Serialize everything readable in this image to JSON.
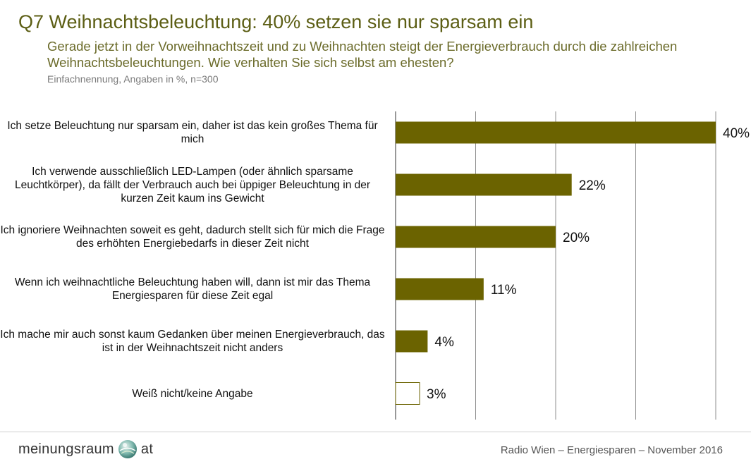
{
  "header": {
    "title": "Q7 Weihnachtsbeleuchtung: 40% setzen sie nur sparsam ein",
    "question": "Gerade jetzt in der Vorweihnachtszeit und zu Weihnachten steigt der Energieverbrauch durch die zahlreichen Weihnachtsbeleuchtungen. Wie verhalten Sie sich selbst am ehesten?",
    "note": "Einfachnennung, Angaben in %, n=300"
  },
  "chart_data": {
    "type": "bar",
    "orientation": "horizontal",
    "categories": [
      "Ich setze Beleuchtung nur sparsam ein, daher ist das kein großes Thema für mich",
      "Ich verwende ausschließlich LED-Lampen (oder ähnlich sparsame Leuchtkörper), da fällt der Verbrauch auch bei üppiger Beleuchtung in der kurzen Zeit kaum ins Gewicht",
      "Ich ignoriere Weihnachten soweit es geht, dadurch stellt sich für mich die Frage des erhöhten Energiebedarfs in dieser Zeit nicht",
      "Wenn ich weihnachtliche Beleuchtung haben will, dann ist mir das Thema Energiesparen für diese Zeit egal",
      "Ich mache mir auch sonst kaum Gedanken über meinen Energieverbrauch, das ist in der Weihnachtszeit nicht anders",
      "Weiß nicht/keine Angabe"
    ],
    "values": [
      40,
      22,
      20,
      11,
      4,
      3
    ],
    "value_labels": [
      "40%",
      "22%",
      "20%",
      "11%",
      "4%",
      "3%"
    ],
    "xlim": [
      0,
      40
    ],
    "grid": true,
    "colors": {
      "bar": "#6b6300",
      "bar_no_answer": "#ffffff",
      "bar_outline": "#6b6300",
      "grid": "#8c8c8c",
      "title": "#5c5e14"
    }
  },
  "footer": {
    "logo_left": "meinungsraum",
    "logo_right": "at",
    "logo_icon": "globe-icon",
    "source": "Radio Wien – Energiesparen – November 2016"
  }
}
